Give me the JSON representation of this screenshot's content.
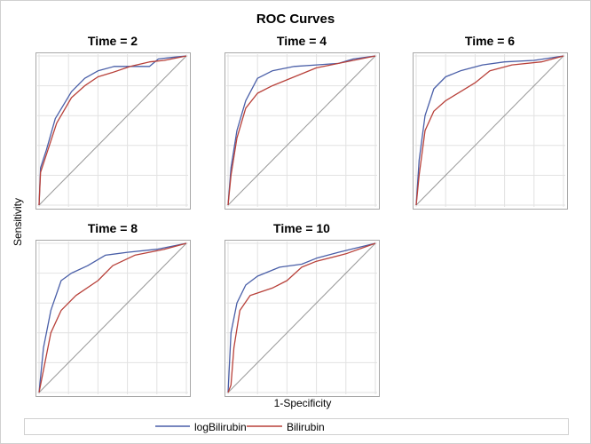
{
  "chart_data": {
    "type": "line",
    "title": "ROC Curves",
    "xlabel": "1-Specificity",
    "ylabel": "Sensitivity",
    "xlim": [
      0,
      1
    ],
    "ylim": [
      0,
      1
    ],
    "grid": true,
    "legend_position": "bottom",
    "colors": {
      "logBilirubin": "#4a5fa8",
      "Bilirubin": "#b8413a",
      "reference": "#999999"
    },
    "legend": [
      "logBilirubin",
      "Bilirubin"
    ],
    "panels": [
      {
        "title": "Time = 2",
        "series": [
          {
            "name": "logBilirubin",
            "x": [
              0,
              0.01,
              0.05,
              0.11,
              0.22,
              0.31,
              0.4,
              0.51,
              0.63,
              0.75,
              0.81,
              0.9,
              1
            ],
            "y": [
              0,
              0.25,
              0.37,
              0.58,
              0.76,
              0.85,
              0.9,
              0.93,
              0.93,
              0.93,
              0.98,
              0.99,
              1
            ]
          },
          {
            "name": "Bilirubin",
            "x": [
              0,
              0.01,
              0.06,
              0.12,
              0.22,
              0.31,
              0.4,
              0.5,
              0.62,
              0.75,
              0.85,
              1
            ],
            "y": [
              0,
              0.22,
              0.37,
              0.55,
              0.72,
              0.8,
              0.86,
              0.89,
              0.93,
              0.96,
              0.97,
              1
            ]
          }
        ]
      },
      {
        "title": "Time = 4",
        "series": [
          {
            "name": "logBilirubin",
            "x": [
              0,
              0.02,
              0.06,
              0.12,
              0.2,
              0.3,
              0.45,
              0.6,
              0.75,
              0.85,
              1
            ],
            "y": [
              0,
              0.25,
              0.5,
              0.7,
              0.85,
              0.9,
              0.93,
              0.94,
              0.95,
              0.98,
              1
            ]
          },
          {
            "name": "Bilirubin",
            "x": [
              0,
              0.02,
              0.06,
              0.12,
              0.2,
              0.3,
              0.45,
              0.6,
              0.75,
              0.85,
              1
            ],
            "y": [
              0,
              0.2,
              0.45,
              0.65,
              0.75,
              0.8,
              0.86,
              0.92,
              0.95,
              0.97,
              1
            ]
          }
        ]
      },
      {
        "title": "Time = 6",
        "series": [
          {
            "name": "logBilirubin",
            "x": [
              0,
              0.02,
              0.06,
              0.12,
              0.2,
              0.3,
              0.45,
              0.6,
              0.8,
              1
            ],
            "y": [
              0,
              0.3,
              0.6,
              0.78,
              0.86,
              0.9,
              0.94,
              0.96,
              0.97,
              1
            ]
          },
          {
            "name": "Bilirubin",
            "x": [
              0,
              0.02,
              0.06,
              0.12,
              0.2,
              0.3,
              0.4,
              0.5,
              0.65,
              0.85,
              1
            ],
            "y": [
              0,
              0.2,
              0.5,
              0.63,
              0.7,
              0.76,
              0.82,
              0.9,
              0.94,
              0.96,
              1
            ]
          }
        ]
      },
      {
        "title": "Time = 8",
        "series": [
          {
            "name": "logBilirubin",
            "x": [
              0,
              0.03,
              0.08,
              0.15,
              0.22,
              0.33,
              0.45,
              0.6,
              0.8,
              1
            ],
            "y": [
              0,
              0.3,
              0.55,
              0.75,
              0.8,
              0.85,
              0.92,
              0.94,
              0.96,
              1
            ]
          },
          {
            "name": "Bilirubin",
            "x": [
              0,
              0.03,
              0.08,
              0.15,
              0.25,
              0.4,
              0.5,
              0.65,
              0.85,
              1
            ],
            "y": [
              0,
              0.15,
              0.4,
              0.55,
              0.65,
              0.75,
              0.85,
              0.92,
              0.96,
              1
            ]
          }
        ]
      },
      {
        "title": "Time = 10",
        "series": [
          {
            "name": "logBilirubin",
            "x": [
              0,
              0.02,
              0.06,
              0.12,
              0.2,
              0.35,
              0.5,
              0.6,
              0.75,
              1
            ],
            "y": [
              0,
              0.4,
              0.6,
              0.72,
              0.78,
              0.84,
              0.86,
              0.9,
              0.94,
              1
            ]
          },
          {
            "name": "Bilirubin",
            "x": [
              0,
              0.02,
              0.04,
              0.08,
              0.15,
              0.3,
              0.4,
              0.5,
              0.6,
              0.8,
              1
            ],
            "y": [
              0,
              0.05,
              0.3,
              0.55,
              0.65,
              0.7,
              0.75,
              0.84,
              0.88,
              0.93,
              1
            ]
          }
        ]
      }
    ]
  }
}
